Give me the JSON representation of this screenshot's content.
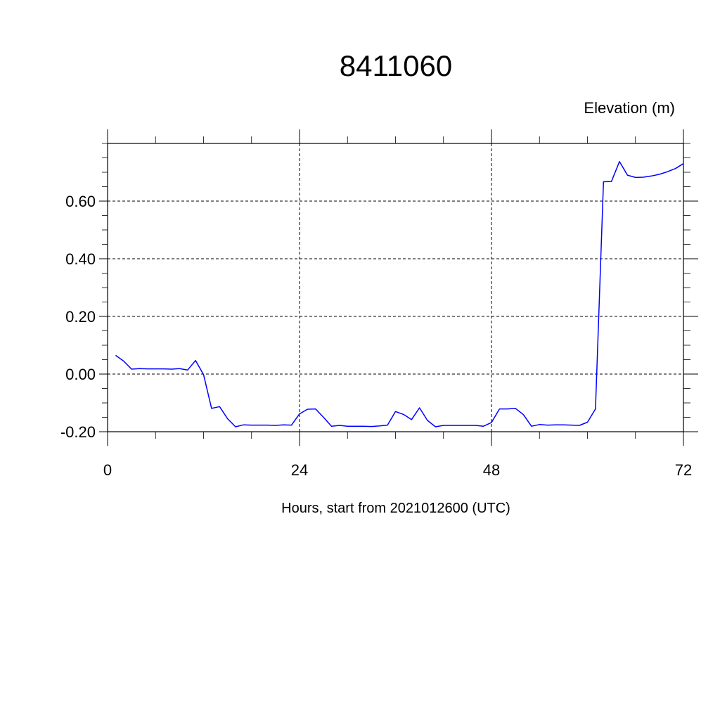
{
  "chart_data": {
    "type": "line",
    "title": "8411060",
    "ylabel": "Elevation (m)",
    "xlabel": "Hours, start from 2021012600 (UTC)",
    "xlim": [
      0,
      72
    ],
    "ylim": [
      -0.2,
      0.8
    ],
    "x_ticks": [
      0,
      24,
      48,
      72
    ],
    "x_tick_labels": [
      "0",
      "24",
      "48",
      "72"
    ],
    "y_ticks": [
      -0.2,
      0,
      0.2,
      0.4,
      0.6
    ],
    "y_tick_labels": [
      "-0.20",
      "0.00",
      "0.20",
      "0.40",
      "0.60"
    ],
    "grid": "dashed at major ticks",
    "series": [
      {
        "color": "#0000ff",
        "x": [
          1,
          2,
          3,
          4,
          5,
          6,
          7,
          8,
          9,
          10,
          11,
          12,
          13,
          14,
          15,
          16,
          17,
          18,
          19,
          20,
          21,
          22,
          23,
          24,
          25,
          26,
          27,
          28,
          29,
          30,
          31,
          32,
          33,
          34,
          35,
          36,
          37,
          38,
          39,
          40,
          41,
          42,
          43,
          44,
          45,
          46,
          47,
          48,
          49,
          50,
          51,
          52,
          53,
          54,
          55,
          56,
          57,
          58,
          59,
          60,
          61,
          62,
          63,
          64,
          65,
          66,
          67,
          68,
          69,
          70,
          71,
          72
        ],
        "y": [
          0.065,
          0.045,
          0.017,
          0.019,
          0.018,
          0.018,
          0.018,
          0.017,
          0.019,
          0.014,
          0.047,
          -0.002,
          -0.119,
          -0.113,
          -0.155,
          -0.183,
          -0.176,
          -0.177,
          -0.177,
          -0.177,
          -0.178,
          -0.176,
          -0.177,
          -0.138,
          -0.122,
          -0.121,
          -0.15,
          -0.181,
          -0.178,
          -0.181,
          -0.181,
          -0.181,
          -0.182,
          -0.18,
          -0.177,
          -0.13,
          -0.14,
          -0.158,
          -0.117,
          -0.161,
          -0.183,
          -0.178,
          -0.178,
          -0.178,
          -0.178,
          -0.178,
          -0.181,
          -0.168,
          -0.121,
          -0.121,
          -0.119,
          -0.141,
          -0.181,
          -0.175,
          -0.177,
          -0.176,
          -0.176,
          -0.177,
          -0.178,
          -0.167,
          -0.121,
          0.667,
          0.668,
          0.737,
          0.69,
          0.682,
          0.683,
          0.687,
          0.693,
          0.702,
          0.713,
          0.73
        ]
      }
    ]
  }
}
